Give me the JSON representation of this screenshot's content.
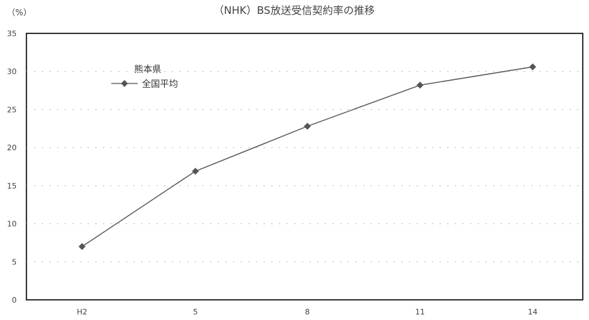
{
  "chart_data": {
    "type": "line",
    "title": "（NHK）BS放送受信契約率の推移",
    "y_unit": "（%）",
    "xlabel": "",
    "ylabel": "",
    "categories": [
      "H2",
      "5",
      "8",
      "11",
      "14"
    ],
    "ylim": [
      0,
      35
    ],
    "yticks": [
      0,
      5,
      10,
      15,
      20,
      25,
      30,
      35
    ],
    "grid": "dotted-horizontal",
    "legend_position": "top-left",
    "legend_header": "熊本県",
    "series": [
      {
        "name": "全国平均",
        "values": [
          7.0,
          16.9,
          22.8,
          28.2,
          30.6
        ],
        "color": "#555555",
        "marker": "diamond"
      }
    ]
  }
}
